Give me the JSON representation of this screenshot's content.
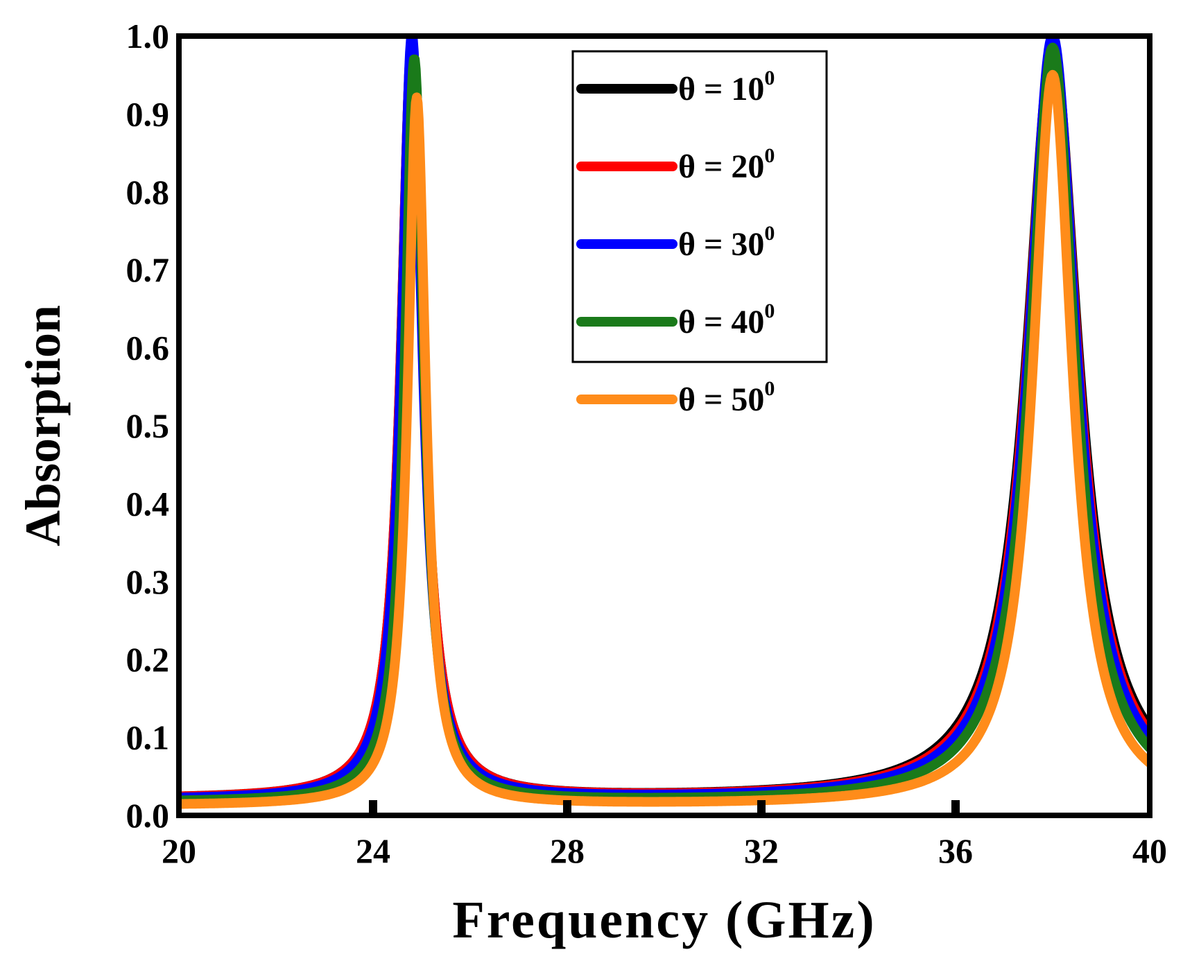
{
  "chart_data": {
    "type": "line",
    "xlabel": "Frequency (GHz)",
    "ylabel": "Absorption",
    "xlim": [
      20,
      40
    ],
    "ylim": [
      0.0,
      1.0
    ],
    "x_ticks": [
      20,
      24,
      28,
      32,
      36,
      40
    ],
    "x_tick_labels": [
      "20",
      "24",
      "28",
      "32",
      "36",
      "40"
    ],
    "y_ticks": [
      0.0,
      0.1,
      0.2,
      0.3,
      0.4,
      0.5,
      0.6,
      0.7,
      0.8,
      0.9,
      1.0
    ],
    "y_tick_labels": [
      "0.0",
      "0.1",
      "0.2",
      "0.3",
      "0.4",
      "0.5",
      "0.6",
      "0.7",
      "0.8",
      "0.9",
      "1.0"
    ],
    "legend_position": "top-center",
    "grid": false,
    "series": [
      {
        "name": "θ = 10",
        "sup": "0",
        "color": "#000000",
        "peak1": {
          "f": 24.8,
          "a": 0.99,
          "w": 0.55
        },
        "peak2": {
          "f": 38.0,
          "a": 0.985,
          "w": 1.3
        },
        "baseline": 0.02
      },
      {
        "name": "θ = 20",
        "sup": "0",
        "color": "#ff0000",
        "peak1": {
          "f": 24.8,
          "a": 0.99,
          "w": 0.55
        },
        "peak2": {
          "f": 38.0,
          "a": 0.99,
          "w": 1.25
        },
        "baseline": 0.02
      },
      {
        "name": "θ = 30",
        "sup": "0",
        "color": "#0000ff",
        "peak1": {
          "f": 24.8,
          "a": 1.0,
          "w": 0.52
        },
        "peak2": {
          "f": 38.0,
          "a": 1.0,
          "w": 1.2
        },
        "baseline": 0.019
      },
      {
        "name": "θ = 40",
        "sup": "0",
        "color": "#1a7a1a",
        "peak1": {
          "f": 24.85,
          "a": 0.97,
          "w": 0.48
        },
        "peak2": {
          "f": 38.0,
          "a": 0.985,
          "w": 1.12
        },
        "baseline": 0.016
      },
      {
        "name": "θ = 50",
        "sup": "0",
        "color": "#ff8c1a",
        "peak1": {
          "f": 24.9,
          "a": 0.92,
          "w": 0.45
        },
        "peak2": {
          "f": 38.0,
          "a": 0.95,
          "w": 1.0
        },
        "baseline": 0.012
      }
    ]
  }
}
